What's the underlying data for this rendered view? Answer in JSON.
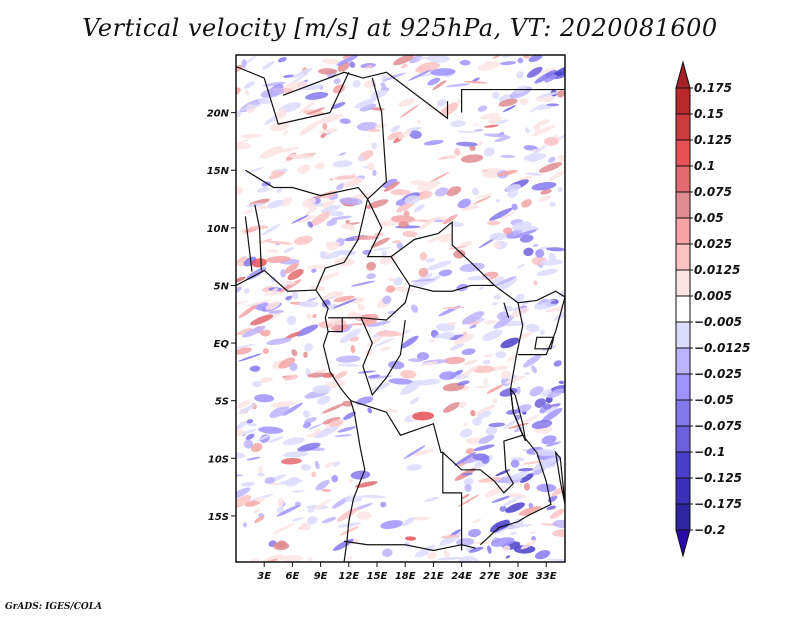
{
  "title": "Vertical velocity [m/s] at 925hPa, VT: 2020081600",
  "footer": "GrADS: IGES/COLA",
  "chart_data": {
    "type": "heatmap",
    "title": "Vertical velocity [m/s] at 925hPa, VT: 2020081600",
    "variable": "Vertical velocity",
    "units": "m/s",
    "level": "925hPa",
    "valid_time": "2020081600",
    "xlabel": "",
    "ylabel": "",
    "xlim": [
      0,
      35
    ],
    "ylim": [
      -19,
      25
    ],
    "x_ticks": [
      {
        "value": 3,
        "label": "3E"
      },
      {
        "value": 6,
        "label": "6E"
      },
      {
        "value": 9,
        "label": "9E"
      },
      {
        "value": 12,
        "label": "12E"
      },
      {
        "value": 15,
        "label": "15E"
      },
      {
        "value": 18,
        "label": "18E"
      },
      {
        "value": 21,
        "label": "21E"
      },
      {
        "value": 24,
        "label": "24E"
      },
      {
        "value": 27,
        "label": "27E"
      },
      {
        "value": 30,
        "label": "30E"
      },
      {
        "value": 33,
        "label": "33E"
      }
    ],
    "y_ticks": [
      {
        "value": 20,
        "label": "20N"
      },
      {
        "value": 15,
        "label": "15N"
      },
      {
        "value": 10,
        "label": "10N"
      },
      {
        "value": 5,
        "label": "5N"
      },
      {
        "value": 0,
        "label": "EQ"
      },
      {
        "value": -5,
        "label": "5S"
      },
      {
        "value": -10,
        "label": "10S"
      },
      {
        "value": -15,
        "label": "15S"
      }
    ],
    "colorbar": {
      "orientation": "vertical",
      "placement": "right",
      "levels": [
        0.175,
        0.15,
        0.125,
        0.1,
        0.075,
        0.05,
        0.025,
        0.0125,
        0.005,
        -0.005,
        -0.0125,
        -0.025,
        -0.05,
        -0.075,
        -0.1,
        -0.125,
        -0.175,
        -0.2
      ],
      "level_labels": [
        "0.175",
        "0.15",
        "0.125",
        "0.1",
        "0.075",
        "0.05",
        "0.025",
        "0.0125",
        "0.005",
        "−0.005",
        "−0.0125",
        "−0.025",
        "−0.05",
        "−0.075",
        "−0.1",
        "−0.125",
        "−0.175",
        "−0.2"
      ],
      "colors": [
        "#a52128",
        "#b8282c",
        "#cc3b3f",
        "#e45157",
        "#e26b70",
        "#e18c90",
        "#f5a3a5",
        "#fcc3c4",
        "#fde4e4",
        "#ffffff",
        "#dcdcff",
        "#bdb4ff",
        "#9f92ff",
        "#8578ec",
        "#6e5fdc",
        "#4a3fcc",
        "#3b2fb7",
        "#2e25a0",
        "#2a0aa8"
      ],
      "extend": "both"
    },
    "description": "Map of Central/West Africa showing 925hPa vertical velocity; mostly weak values (-0.0125 to 0.0125) with red (ascent) bands over Sahel/Niger/Chad and blue (descent) over Sahara, East African highlands and Angola coast; white over Angola interior and Zambia."
  }
}
